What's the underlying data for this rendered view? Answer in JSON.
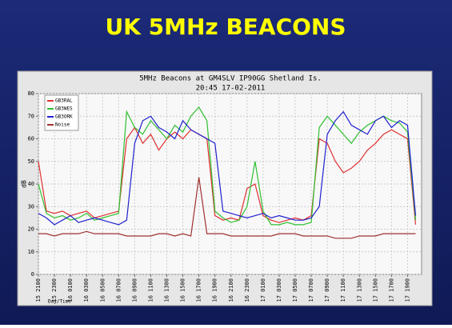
{
  "slide": {
    "title": "UK 5MHz BEACONS"
  },
  "chart_data": {
    "type": "line",
    "title": "5MHz Beacons at GM4SLV IP90GG Shetland Is.",
    "subtitle": "20:45 17-02-2011",
    "x_label": "Day/Time",
    "y_label": "dB",
    "x": [
      "15 2100",
      "15 2200",
      "15 2300",
      "16 0000",
      "16 0100",
      "16 0200",
      "16 0300",
      "16 0400",
      "16 0500",
      "16 0600",
      "16 0700",
      "16 0800",
      "16 0900",
      "16 1000",
      "16 1100",
      "16 1200",
      "16 1300",
      "16 1400",
      "16 1500",
      "16 1600",
      "16 1700",
      "16 1800",
      "16 1900",
      "16 2000",
      "16 2100",
      "16 2200",
      "16 2300",
      "17 0000",
      "17 0100",
      "17 0200",
      "17 0300",
      "17 0400",
      "17 0500",
      "17 0600",
      "17 0700",
      "17 0800",
      "17 0900",
      "17 1000",
      "17 1100",
      "17 1200",
      "17 1300",
      "17 1400",
      "17 1500",
      "17 1600",
      "17 1700",
      "17 1800",
      "17 1900",
      "17 2000"
    ],
    "xlim": [
      "15 2100",
      "17 2045"
    ],
    "xticks": [
      "15 2100",
      "15 2300",
      "16 0100",
      "16 0300",
      "16 0500",
      "16 0700",
      "16 0900",
      "16 1100",
      "16 1300",
      "16 1500",
      "16 1700",
      "16 1900",
      "16 2100",
      "16 2300",
      "17 0100",
      "17 0300",
      "17 0500",
      "17 0700",
      "17 0900",
      "17 1100",
      "17 1300",
      "17 1500",
      "17 1700",
      "17 1900"
    ],
    "ylim": [
      0,
      80
    ],
    "yticks": [
      0,
      10,
      20,
      30,
      40,
      50,
      60,
      70,
      80
    ],
    "grid": true,
    "legend": "upper left",
    "series": [
      {
        "name": "GB3RAL",
        "color": "#e03030",
        "values": [
          50,
          28,
          27,
          28,
          26,
          27,
          28,
          25,
          26,
          27,
          28,
          60,
          65,
          58,
          62,
          55,
          60,
          63,
          60,
          64,
          62,
          60,
          26,
          24,
          25,
          24,
          38,
          40,
          26,
          24,
          23,
          24,
          25,
          24,
          26,
          60,
          58,
          50,
          45,
          47,
          50,
          55,
          58,
          62,
          64,
          62,
          60,
          22
        ]
      },
      {
        "name": "GB3WES",
        "color": "#30c030",
        "values": [
          40,
          27,
          25,
          26,
          24,
          25,
          27,
          24,
          25,
          26,
          27,
          72,
          65,
          62,
          68,
          64,
          60,
          66,
          63,
          70,
          74,
          68,
          28,
          25,
          23,
          24,
          30,
          50,
          28,
          22,
          22,
          23,
          22,
          22,
          23,
          65,
          70,
          66,
          62,
          58,
          63,
          66,
          68,
          70,
          68,
          67,
          63,
          24
        ]
      },
      {
        "name": "GB3ORK",
        "color": "#2020d0",
        "values": [
          27,
          25,
          22,
          24,
          26,
          23,
          24,
          25,
          24,
          23,
          22,
          24,
          58,
          68,
          70,
          65,
          63,
          60,
          68,
          64,
          62,
          60,
          58,
          28,
          27,
          26,
          25,
          26,
          27,
          25,
          26,
          25,
          24,
          24,
          25,
          30,
          62,
          68,
          72,
          66,
          64,
          62,
          68,
          70,
          65,
          68,
          66,
          26
        ]
      },
      {
        "name": "Noise",
        "color": "#a03030",
        "values": [
          18,
          18,
          17,
          18,
          18,
          18,
          19,
          18,
          18,
          18,
          18,
          17,
          17,
          17,
          17,
          18,
          18,
          17,
          18,
          17,
          43,
          18,
          18,
          18,
          17,
          17,
          17,
          17,
          17,
          17,
          18,
          18,
          18,
          17,
          17,
          17,
          17,
          16,
          16,
          16,
          17,
          17,
          17,
          18,
          18,
          18,
          18,
          18
        ]
      }
    ]
  }
}
